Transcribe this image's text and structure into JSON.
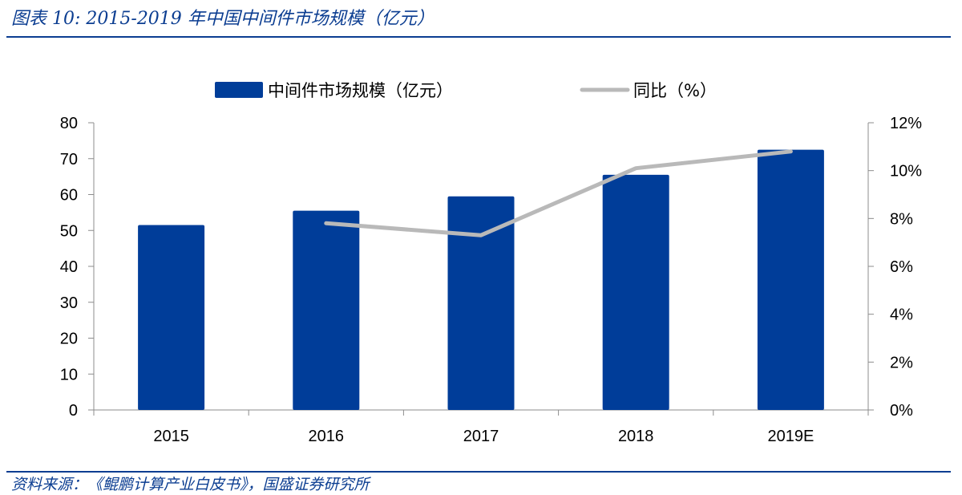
{
  "figure": {
    "title": "图表 10:  2015-2019 年中国中间件市场规模（亿元）",
    "source": "资料来源：《鲲鹏计算产业白皮书》，国盛证券研究所"
  },
  "colors": {
    "bar": "#003d99",
    "line": "#b9b9b9",
    "accent": "#0b3d91",
    "axis": "#8c8c8c",
    "text": "#000000"
  },
  "chart_data": {
    "type": "bar",
    "categories": [
      "2015",
      "2016",
      "2017",
      "2018",
      "2019E"
    ],
    "series": [
      {
        "name": "中间件市场规模（亿元）",
        "type": "bar",
        "axis": "left",
        "values": [
          51.5,
          55.5,
          59.5,
          65.5,
          72.5
        ]
      },
      {
        "name": "同比（%）",
        "type": "line",
        "axis": "right",
        "values": [
          null,
          7.8,
          7.3,
          10.1,
          10.8
        ]
      }
    ],
    "y_left": {
      "min": 0,
      "max": 80,
      "ticks": [
        "0",
        "10",
        "20",
        "30",
        "40",
        "50",
        "60",
        "70",
        "80"
      ]
    },
    "y_right": {
      "min": 0,
      "max": 12,
      "ticks": [
        "0%",
        "2%",
        "4%",
        "6%",
        "8%",
        "10%",
        "12%"
      ]
    },
    "legend": "top-center",
    "grid": false
  }
}
